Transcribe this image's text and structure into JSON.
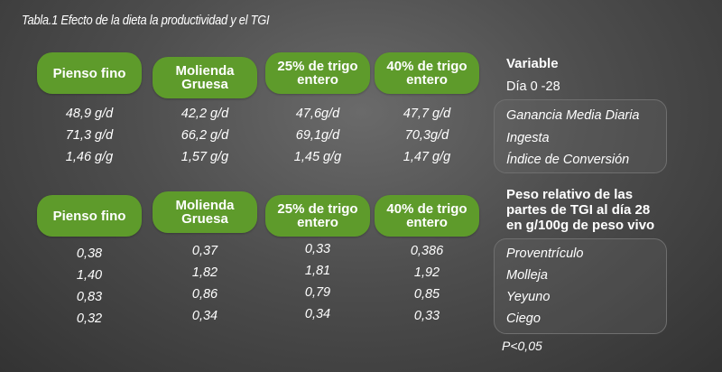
{
  "title": "Tabla.1 Efecto de la dieta la productividad y el TGI",
  "headers": [
    "Pienso fino",
    "Molienda\nGruesa",
    "25% de trigo\nentero",
    "40% de trigo\nentero"
  ],
  "table1": {
    "variable_title": "Variable",
    "period": "Día 0 -28",
    "labels": [
      "Ganancia Media Diaria",
      "Ingesta",
      "Índice de Conversión"
    ],
    "columns": [
      [
        "48,9 g/d",
        "71,3 g/d",
        "1,46 g/g"
      ],
      [
        "42,2 g/d",
        "66,2 g/d",
        "1,57 g/g"
      ],
      [
        "47,6g/d",
        "69,1g/d",
        "1,45 g/g"
      ],
      [
        "47,7 g/d",
        "70,3g/d",
        "1,47 g/g"
      ]
    ]
  },
  "table2": {
    "variable_title_lines": [
      "Peso relativo de las",
      "partes de TGI al día 28",
      "en g/100g de peso vivo"
    ],
    "labels": [
      "Proventrículo",
      "Molleja",
      "Yeyuno",
      "Ciego"
    ],
    "columns": [
      [
        "0,38",
        "1,40",
        "0,83",
        "0,32"
      ],
      [
        "0,37",
        "1,82",
        "0,86",
        "0,34"
      ],
      [
        "0,33",
        "1,81",
        "0,79",
        "0,34"
      ],
      [
        "0,386",
        "1,92",
        "0,85",
        "0,33"
      ]
    ]
  },
  "footnote": "P<0,05"
}
